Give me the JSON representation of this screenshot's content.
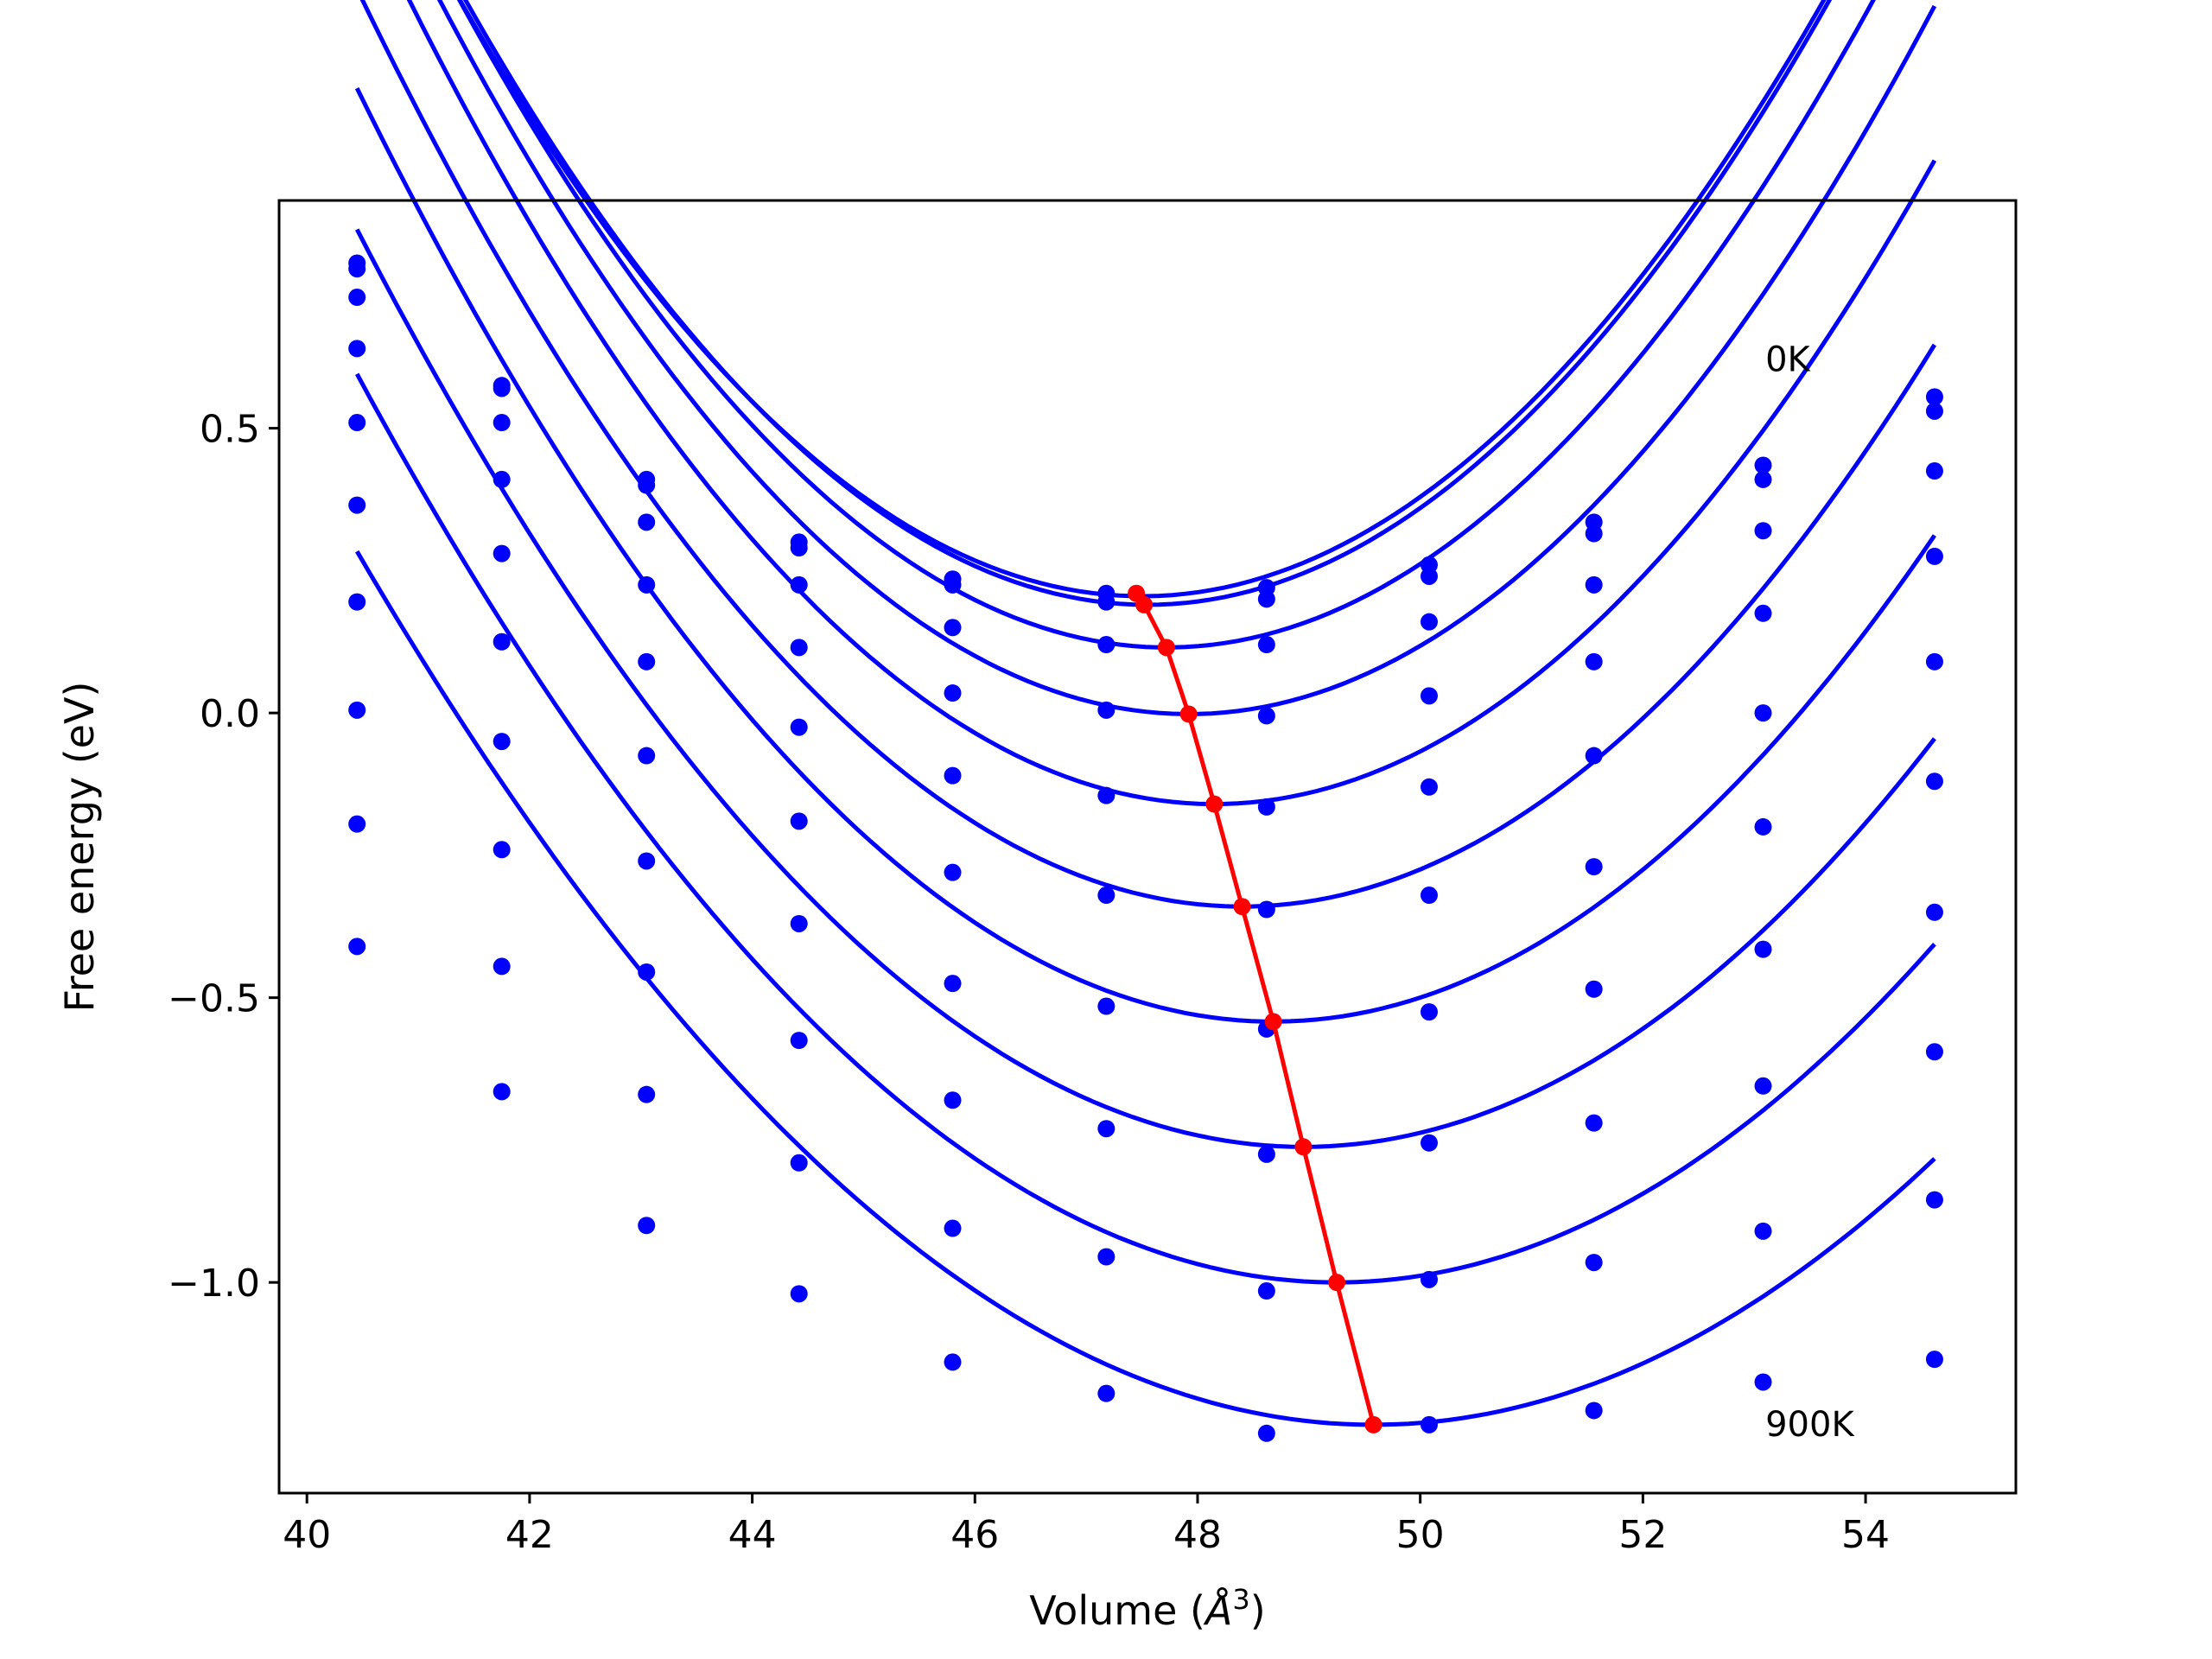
{
  "chart_data": {
    "type": "line",
    "title": "",
    "xlabel": "Volume (Å³)",
    "xlabel_parts": {
      "prefix": "Volume (",
      "unit_base": "Å",
      "unit_exp": "3",
      "suffix": ")"
    },
    "ylabel": "Free energy (eV)",
    "xlim": [
      39.75,
      55.35
    ],
    "ylim": [
      -1.37,
      0.9
    ],
    "grid": false,
    "x_ticks": [
      40,
      42,
      44,
      46,
      48,
      50,
      52,
      54
    ],
    "x_tick_labels": [
      "40",
      "42",
      "44",
      "46",
      "48",
      "50",
      "52",
      "54"
    ],
    "y_ticks": [
      0.5,
      0.0,
      -0.5,
      -1.0
    ],
    "y_tick_labels": [
      "0.5",
      "0.0",
      "−0.5",
      "−1.0"
    ],
    "x": [
      40.45,
      41.75,
      43.05,
      44.42,
      45.8,
      47.18,
      48.62,
      50.08,
      51.56,
      53.08,
      54.62
    ],
    "annotations": [
      {
        "text": "0K",
        "x": 53.1,
        "y": 0.6
      },
      {
        "text": "900K",
        "x": 53.1,
        "y": -1.27
      }
    ],
    "curve_color": "#0000ff",
    "minima_color": "#ff0000",
    "series": [
      {
        "values": [
          0.79,
          0.575,
          0.41,
          0.3,
          0.235,
          0.21,
          0.22,
          0.26,
          0.335,
          0.435,
          0.555
        ],
        "fit": {
          "a": 0.0279,
          "v0": 47.5,
          "e0": 0.205
        }
      },
      {
        "values": [
          0.78,
          0.57,
          0.4,
          0.29,
          0.225,
          0.195,
          0.2,
          0.24,
          0.315,
          0.41,
          0.53
        ],
        "fit": {
          "a": 0.0283,
          "v0": 47.55,
          "e0": 0.19
        }
      },
      {
        "values": [
          0.73,
          0.51,
          0.335,
          0.225,
          0.15,
          0.12,
          0.12,
          0.16,
          0.225,
          0.32,
          0.425
        ],
        "fit": {
          "a": 0.0282,
          "v0": 47.72,
          "e0": 0.115
        }
      },
      {
        "values": [
          0.64,
          0.41,
          0.225,
          0.115,
          0.035,
          0.005,
          -0.005,
          0.03,
          0.09,
          0.175,
          0.275
        ],
        "fit": {
          "a": 0.0277,
          "v0": 47.92,
          "e0": -0.002
        }
      },
      {
        "values": [
          0.51,
          0.28,
          0.09,
          -0.025,
          -0.11,
          -0.145,
          -0.165,
          -0.13,
          -0.075,
          0.0,
          0.09
        ],
        "fit": {
          "a": 0.027,
          "v0": 48.15,
          "e0": -0.16
        }
      },
      {
        "values": [
          0.365,
          0.125,
          -0.075,
          -0.19,
          -0.28,
          -0.32,
          -0.345,
          -0.32,
          -0.27,
          -0.2,
          -0.12
        ],
        "fit": {
          "a": 0.0255,
          "v0": 48.4,
          "e0": -0.34
        }
      },
      {
        "values": [
          0.195,
          -0.05,
          -0.26,
          -0.37,
          -0.475,
          -0.515,
          -0.555,
          -0.525,
          -0.485,
          -0.415,
          -0.35
        ],
        "fit": {
          "a": 0.0242,
          "v0": 48.68,
          "e0": -0.542
        }
      },
      {
        "values": [
          0.005,
          -0.24,
          -0.455,
          -0.575,
          -0.68,
          -0.73,
          -0.775,
          -0.755,
          -0.72,
          -0.655,
          -0.595
        ],
        "fit": {
          "a": 0.0223,
          "v0": 48.95,
          "e0": -0.762
        }
      },
      {
        "values": [
          -0.195,
          -0.445,
          -0.67,
          -0.79,
          -0.905,
          -0.955,
          -1.015,
          -0.995,
          -0.965,
          -0.91,
          -0.855
        ],
        "fit": {
          "a": 0.0206,
          "v0": 49.25,
          "e0": -1.0
        }
      },
      {
        "values": [
          -0.41,
          -0.665,
          -0.9,
          -1.02,
          -1.14,
          -1.195,
          -1.265,
          -1.25,
          -1.225,
          -1.175,
          -1.135
        ],
        "fit": {
          "a": 0.0184,
          "v0": 49.58,
          "e0": -1.25
        }
      }
    ],
    "minima": {
      "x": [
        47.45,
        47.52,
        47.72,
        47.92,
        48.15,
        48.4,
        48.68,
        48.95,
        49.25,
        49.58
      ],
      "y": [
        0.21,
        0.19,
        0.115,
        -0.002,
        -0.16,
        -0.34,
        -0.542,
        -0.762,
        -1.0,
        -1.25
      ]
    }
  }
}
